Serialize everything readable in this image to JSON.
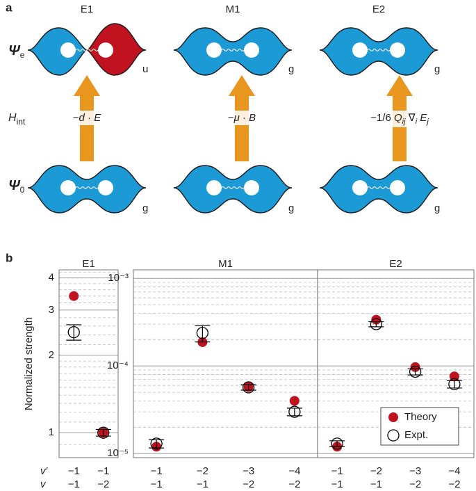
{
  "panel_labels": [
    "a",
    "b"
  ],
  "diagram": {
    "row_labels": {
      "upper": {
        "symbol": "Ψ",
        "sub": "e"
      },
      "interaction": {
        "symbol": "H",
        "sub": "int"
      },
      "lower": {
        "symbol": "Ψ",
        "sub": "0"
      }
    },
    "transitions": [
      {
        "title": "E1",
        "upper_parity": "u",
        "lower_parity": "g",
        "operator": [
          {
            "text": "−",
            "style": "plain"
          },
          {
            "text": "d",
            "style": "italic"
          },
          {
            "text": " · ",
            "style": "plain"
          },
          {
            "text": "E",
            "style": "italic"
          }
        ]
      },
      {
        "title": "M1",
        "upper_parity": "g",
        "lower_parity": "g",
        "operator": [
          {
            "text": "−",
            "style": "plain"
          },
          {
            "text": "μ",
            "style": "italic"
          },
          {
            "text": " · ",
            "style": "plain"
          },
          {
            "text": "B",
            "style": "italic"
          }
        ]
      },
      {
        "title": "E2",
        "upper_parity": "g",
        "lower_parity": "g",
        "operator": [
          {
            "text": "−1/6 ",
            "style": "plain"
          },
          {
            "text": "Q",
            "style": "italic"
          },
          {
            "text": "ij",
            "style": "sub"
          },
          {
            "text": " ∇",
            "style": "plain"
          },
          {
            "text": "i",
            "style": "sub"
          },
          {
            "text": " E",
            "style": "italic"
          },
          {
            "text": "j",
            "style": "sub"
          }
        ]
      }
    ]
  },
  "chart_data": [
    {
      "type": "dot",
      "title": "E1",
      "y_label": "Normalized strength",
      "category_row_labels": [
        "v′",
        "v"
      ],
      "categories": [
        [
          "−1",
          "−1"
        ],
        [
          "−1",
          "−2"
        ]
      ],
      "yscale": "log",
      "ylim": [
        0.8,
        4.3
      ],
      "yticks": [
        1,
        2,
        3,
        4
      ],
      "minor_yticks": [
        0.9,
        1.1,
        1.2,
        1.3,
        1.4,
        1.5,
        1.6,
        1.7,
        1.8,
        1.9,
        2.2,
        2.4,
        2.6,
        2.8,
        3.2,
        3.4,
        3.6,
        3.8,
        4.2
      ],
      "grid": true,
      "series": [
        {
          "color": "#c0121f",
          "marker": "filled",
          "values": [
            3.4,
            1.0
          ]
        },
        {
          "color": "#000000",
          "marker": "open",
          "values": [
            2.46,
            1.0
          ],
          "errors": [
            0.17,
            0.03
          ]
        }
      ]
    },
    {
      "type": "dot",
      "title": "M1",
      "categories": [
        [
          "−1",
          "−1"
        ],
        [
          "−2",
          "−1"
        ],
        [
          "−3",
          "−2"
        ],
        [
          "−4",
          "−2"
        ]
      ],
      "yscale": "log",
      "ylim": [
        9e-06,
        0.00125
      ],
      "yticks": [
        {
          "value": 1e-05,
          "label": "10⁻⁵"
        },
        {
          "value": 0.0001,
          "label": "10⁻⁴"
        },
        {
          "value": 0.001,
          "label": "10⁻³"
        }
      ],
      "minor_yticks": [
        2e-05,
        3e-05,
        4e-05,
        5e-05,
        6e-05,
        7e-05,
        8e-05,
        9e-05,
        0.0002,
        0.0003,
        0.0004,
        0.0005,
        0.0006,
        0.0007,
        0.0008,
        0.0009
      ],
      "grid": true,
      "series": [
        {
          "color": "#c0121f",
          "marker": "filled",
          "values": [
            1.2e-05,
            0.000187,
            5.75e-05,
            4e-05
          ]
        },
        {
          "color": "#000000",
          "marker": "open",
          "values": [
            1.3e-05,
            0.000238,
            5.7e-05,
            3e-05
          ],
          "errors": [
            1.4e-06,
            5e-05,
            4e-06,
            3e-06
          ]
        }
      ]
    },
    {
      "type": "dot",
      "title": "E2",
      "categories": [
        [
          "−1",
          "−1"
        ],
        [
          "−2",
          "−1"
        ],
        [
          "−3",
          "−2"
        ],
        [
          "−4",
          "−2"
        ]
      ],
      "yscale": "log",
      "ylim": [
        9e-06,
        0.00125
      ],
      "yticks": [
        1e-05,
        0.0001,
        0.001
      ],
      "ytick_labels": false,
      "minor_yticks": [
        2e-05,
        3e-05,
        4e-05,
        5e-05,
        6e-05,
        7e-05,
        8e-05,
        9e-05,
        0.0002,
        0.0003,
        0.0004,
        0.0005,
        0.0006,
        0.0007,
        0.0008,
        0.0009
      ],
      "grid": true,
      "legend": "lower right",
      "series": [
        {
          "name": "Theory",
          "color": "#c0121f",
          "marker": "filled",
          "values": [
            1.2e-05,
            0.000337,
            9.7e-05,
            7.6e-05
          ]
        },
        {
          "name": "Expt.",
          "color": "#000000",
          "marker": "open",
          "values": [
            1.3e-05,
            0.0003,
            8.6e-05,
            6.2e-05
          ],
          "errors": [
            1e-06,
            2e-05,
            7e-06,
            6e-06
          ]
        }
      ]
    }
  ]
}
